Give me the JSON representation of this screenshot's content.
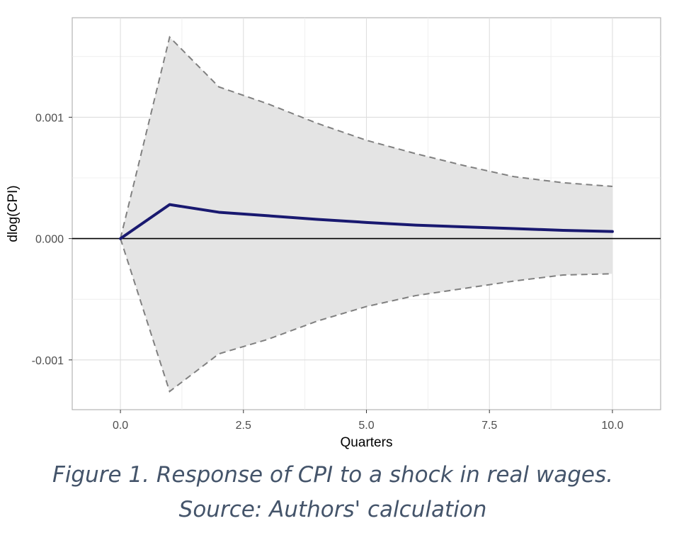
{
  "chart_data": {
    "type": "line",
    "xlabel": "Quarters",
    "ylabel": "dlog(CPI)",
    "xlim": [
      -0.98,
      10.98
    ],
    "ylim": [
      -0.00141,
      0.00182
    ],
    "x_ticks": [
      0.0,
      2.5,
      5.0,
      7.5,
      10.0
    ],
    "x_tick_labels": [
      "0.0",
      "2.5",
      "5.0",
      "7.5",
      "10.0"
    ],
    "y_ticks": [
      -0.001,
      0.0,
      0.001
    ],
    "y_tick_labels": [
      "-0.001",
      "0.000",
      "0.001"
    ],
    "grid": true,
    "x": [
      0,
      1,
      2,
      3,
      4,
      5,
      6,
      7,
      8,
      9,
      10
    ],
    "series": [
      {
        "role": "response",
        "values": [
          0.0,
          0.00028,
          0.000217,
          0.000188,
          0.000158,
          0.000133,
          0.000111,
          9.6e-05,
          8.2e-05,
          6.8e-05,
          5.8e-05
        ],
        "color": "#191970",
        "style": "solid"
      },
      {
        "role": "upper-bound",
        "values": [
          0.0,
          0.00166,
          0.00125,
          0.00111,
          0.00095,
          0.00081,
          0.0007,
          0.0006,
          0.00051,
          0.00046,
          0.00043
        ],
        "color": "#808080",
        "style": "dashed"
      },
      {
        "role": "lower-bound",
        "values": [
          0.0,
          -0.00126,
          -0.00095,
          -0.00083,
          -0.00068,
          -0.00056,
          -0.00047,
          -0.00041,
          -0.00035,
          -0.0003,
          -0.00029
        ],
        "color": "#808080",
        "style": "dashed"
      }
    ],
    "band_color": "#e4e4e4",
    "zero_line_color": "#000000"
  },
  "caption": {
    "line1": "Figure 1. Response of CPI to a shock in real wages.",
    "line2": "Source: Authors' calculation"
  }
}
